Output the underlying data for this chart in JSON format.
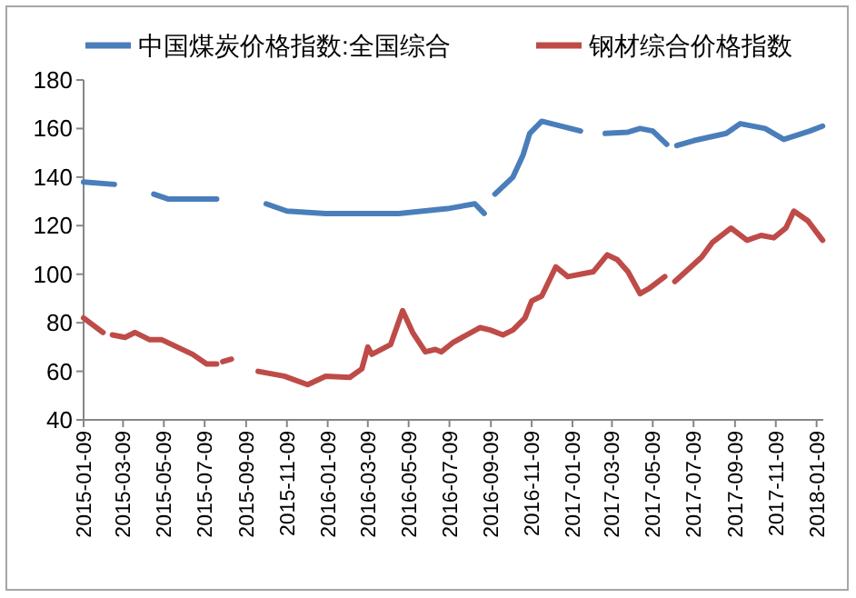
{
  "chart_data": {
    "type": "line",
    "legend": "top",
    "line_style": "solid",
    "xlim": [
      "2015-01-09",
      "2018-01-19"
    ],
    "xticks": [
      "2015-01-09",
      "2015-03-09",
      "2015-05-09",
      "2015-07-09",
      "2015-09-09",
      "2015-11-09",
      "2016-01-09",
      "2016-03-09",
      "2016-05-09",
      "2016-07-09",
      "2016-09-09",
      "2016-11-09",
      "2017-01-09",
      "2017-03-09",
      "2017-05-09",
      "2017-07-09",
      "2017-09-09",
      "2017-11-09",
      "2018-01-09"
    ],
    "ylim": [
      40,
      180
    ],
    "yticks": [
      40,
      60,
      80,
      100,
      120,
      140,
      160,
      180
    ],
    "series": [
      {
        "name": "中国煤炭价格指数:全国综合",
        "color": "#4a7ebb",
        "x": [
          "2015-01-09",
          "2015-02-24",
          "2015-03-20",
          "2015-04-24",
          "2015-05-15",
          "2015-07-27",
          "2015-09-10",
          "2015-10-09",
          "2015-11-09",
          "2016-01-06",
          "2016-04-24",
          "2016-07-06",
          "2016-08-16",
          "2016-08-30",
          "2016-09-10",
          "2016-09-15",
          "2016-10-12",
          "2016-10-27",
          "2016-11-06",
          "2016-11-24",
          "2017-01-21",
          "2017-01-28",
          "2017-02-27",
          "2017-04-02",
          "2017-04-20",
          "2017-05-09",
          "2017-05-30",
          "2017-06-05",
          "2017-06-14",
          "2017-07-09",
          "2017-08-27",
          "2017-09-17",
          "2017-10-24",
          "2017-11-21",
          "2017-12-30",
          "2018-01-18"
        ],
        "values": [
          138,
          137,
          null,
          133,
          131,
          131,
          null,
          129,
          126,
          125,
          125,
          127,
          129,
          125,
          null,
          133,
          140,
          149,
          158,
          163,
          159,
          null,
          158,
          158.5,
          160,
          159,
          153.5,
          null,
          153,
          155,
          158,
          162,
          160,
          155.5,
          159,
          161
        ]
      },
      {
        "name": "钢材综合价格指数",
        "color": "#be4b48",
        "x": [
          "2015-01-09",
          "2015-02-07",
          "2015-02-14",
          "2015-02-21",
          "2015-03-12",
          "2015-03-27",
          "2015-04-18",
          "2015-05-06",
          "2015-06-21",
          "2015-07-12",
          "2015-07-27",
          "2015-08-01",
          "2015-08-05",
          "2015-08-18",
          "2015-09-01",
          "2015-09-27",
          "2015-11-05",
          "2015-12-10",
          "2016-01-06",
          "2016-02-11",
          "2016-02-29",
          "2016-03-09",
          "2016-03-15",
          "2016-04-12",
          "2016-04-30",
          "2016-05-15",
          "2016-06-03",
          "2016-06-18",
          "2016-06-27",
          "2016-07-15",
          "2016-08-24",
          "2016-09-08",
          "2016-09-27",
          "2016-10-12",
          "2016-10-30",
          "2016-11-09",
          "2016-11-24",
          "2016-12-15",
          "2017-01-02",
          "2017-02-09",
          "2017-03-02",
          "2017-03-17",
          "2017-04-02",
          "2017-04-20",
          "2017-05-03",
          "2017-05-27",
          "2017-06-02",
          "2017-06-11",
          "2017-07-21",
          "2017-08-06",
          "2017-09-03",
          "2017-09-27",
          "2017-10-18",
          "2017-11-06",
          "2017-11-24",
          "2017-12-06",
          "2017-12-27",
          "2018-01-18"
        ],
        "values": [
          82,
          76,
          null,
          75,
          74,
          76,
          73,
          73,
          67,
          63,
          63,
          null,
          64,
          65,
          null,
          60,
          58,
          54.5,
          58,
          57.5,
          61,
          70,
          67,
          71,
          85,
          76,
          68,
          69,
          68,
          72,
          78,
          77,
          75,
          77,
          82,
          89,
          91,
          103,
          99,
          101,
          108,
          106,
          101,
          92,
          94,
          99,
          null,
          97,
          107,
          113,
          119,
          114,
          116,
          115,
          119,
          126,
          122,
          114
        ]
      }
    ]
  }
}
